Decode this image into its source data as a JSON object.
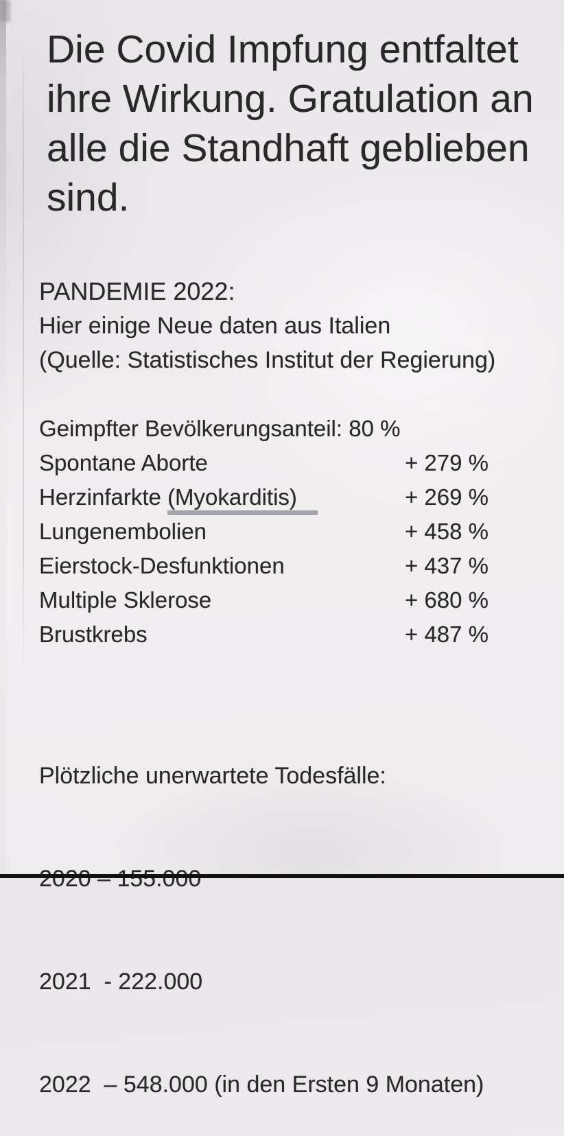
{
  "colors": {
    "background": "#edeaee",
    "text": "#282828",
    "underline_mark": "#98969c",
    "bottom_bar": "#121212"
  },
  "post": {
    "headline": {
      "lines": [
        "Die Covid Impfung entfaltet",
        "ihre Wirkung. Gratulation an",
        "alle die Standhaft geblieben",
        "sind."
      ]
    },
    "section": {
      "title": "PANDEMIE 2022:",
      "subtitle": "Hier einige Neue daten aus Italien",
      "source": "(Quelle: Statistisches Institut der Regierung)"
    },
    "stats": {
      "intro_label": "Geimpfter Bevölkerungsanteil:",
      "intro_value": "80 %",
      "rows": [
        {
          "label": "Spontane Aborte",
          "value": "+ 279 %"
        },
        {
          "label_prefix": "Herzinfarkte ",
          "label_underlined": "(Myokarditis)",
          "value": "+ 269 %"
        },
        {
          "label": "Lungenembolien",
          "value": "+ 458 %"
        },
        {
          "label": "Eierstock-Desfunktionen",
          "value": "+ 437 %"
        },
        {
          "label": "Multiple Sklerose",
          "value": "+ 680 %"
        },
        {
          "label": "Brustkrebs",
          "value": "+ 487 %"
        }
      ]
    },
    "deaths": {
      "title": "Plötzliche unerwartete Todesfälle:",
      "lines": [
        "2020 – 155.000",
        "2021  - 222.000",
        "2022  – 548.000 (in den Ersten 9 Monaten)"
      ]
    }
  }
}
